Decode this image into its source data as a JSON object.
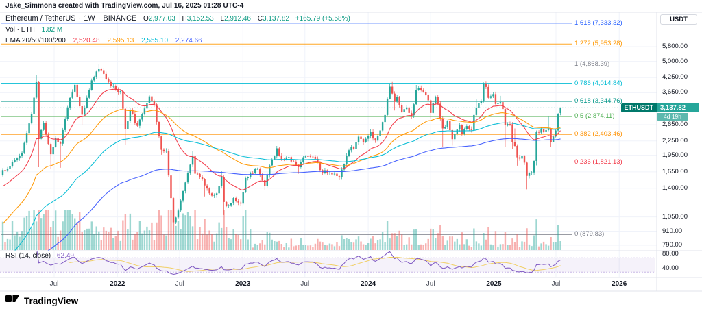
{
  "attribution": "Jake_Simmons created with TradingView.com, Jul 16, 2025 01:28 UTC-4",
  "legend": {
    "symbol": "Ethereum / TetherUS",
    "separator": "·",
    "interval": "1W",
    "exchange": "BINANCE",
    "ohlc": {
      "o_label": "O",
      "o": "2,977.03",
      "h_label": "H",
      "h": "3,152.53",
      "l_label": "L",
      "l": "2,912.46",
      "c_label": "C",
      "c": "3,137.82",
      "change": "+165.79 (+5.58%)"
    },
    "volume": {
      "label": "Vol · ETH",
      "value": "1.82 M"
    },
    "ema": {
      "label": "EMA 20/50/100/200",
      "values": [
        "2,520.48",
        "2,595.13",
        "2,555.10",
        "2,274.66"
      ],
      "colors": [
        "#f23645",
        "#ff9800",
        "#00bcd4",
        "#3d5afe"
      ]
    },
    "rsi": {
      "label": "RSI (14, close)",
      "value": "62.49"
    }
  },
  "price_axis": {
    "currency": "USDT",
    "ticks": [
      "5,800.00",
      "5,000.00",
      "4,250.00",
      "3,650.00",
      "2,650.00",
      "2,250.00",
      "1,950.00",
      "1,650.00",
      "1,400.00",
      "1,050.00",
      "910.00",
      "790.00"
    ],
    "current": {
      "symbol": "ETHUSDT",
      "price": "3,137.82",
      "countdown": "4d 19h"
    }
  },
  "rsi_axis": {
    "ticks": [
      "80.00",
      "40.00"
    ],
    "values": [
      80,
      40
    ]
  },
  "footer": {
    "brand": "TradingView"
  },
  "colors": {
    "up_text": "#089981",
    "down_text": "#f23645",
    "candle_up": "#26a69a",
    "candle_down": "#ef5350",
    "rsi": "#7e57c2",
    "rsi_ma": "#f0c94a",
    "grid": "#f0f3fa",
    "separator": "#e0e3eb",
    "text": "#131722"
  },
  "chart_data": {
    "type": "candlestick",
    "title": "Ethereum / TetherUS 1W (BINANCE) with EMA 20/50/100/200, Volume, RSI(14) and Fibonacci extension levels",
    "symbol": "ETHUSDT",
    "timeframe": "1W",
    "exchange": "BINANCE",
    "price_scale": "log",
    "start_date": "2021-02-01",
    "weeks": 233,
    "y_ticks": [
      5800,
      5000,
      4250,
      3650,
      2650,
      2250,
      1950,
      1650,
      1400,
      1050,
      910,
      790
    ],
    "time_ticks": [
      {
        "label": "Jul",
        "week": 21.4,
        "year": false
      },
      {
        "label": "2022",
        "week": 47.7,
        "year": true
      },
      {
        "label": "Jul",
        "week": 73.6,
        "year": false
      },
      {
        "label": "2023",
        "week": 99.9,
        "year": true
      },
      {
        "label": "Jul",
        "week": 125.7,
        "year": false
      },
      {
        "label": "2024",
        "week": 152.0,
        "year": true
      },
      {
        "label": "Jul",
        "week": 178.0,
        "year": false
      },
      {
        "label": "2025",
        "week": 204.3,
        "year": true
      },
      {
        "label": "Jul",
        "week": 230.1,
        "year": false
      },
      {
        "label": "2026",
        "week": 256.4,
        "year": true
      }
    ],
    "keypoints": [
      [
        0,
        1680,
        null,
        null
      ],
      [
        3,
        1750,
        1400,
        null
      ],
      [
        8,
        2000,
        null,
        null
      ],
      [
        12,
        2950,
        null,
        null
      ],
      [
        14,
        4080,
        null,
        4370
      ],
      [
        15,
        2300,
        1730,
        null
      ],
      [
        17,
        2700,
        null,
        null
      ],
      [
        20,
        1970,
        1700,
        null
      ],
      [
        22,
        2320,
        null,
        null
      ],
      [
        24,
        2190,
        1720,
        null
      ],
      [
        27,
        3150,
        null,
        null
      ],
      [
        30,
        3950,
        null,
        null
      ],
      [
        33,
        2930,
        2650,
        null
      ],
      [
        37,
        4130,
        null,
        null
      ],
      [
        40,
        4640,
        null,
        4868
      ],
      [
        42,
        4410,
        null,
        null
      ],
      [
        44,
        4090,
        null,
        null
      ],
      [
        47,
        3770,
        null,
        null
      ],
      [
        49,
        3710,
        null,
        null
      ],
      [
        51,
        2540,
        2160,
        null
      ],
      [
        53,
        3060,
        null,
        null
      ],
      [
        56,
        2620,
        null,
        null
      ],
      [
        58,
        2950,
        null,
        null
      ],
      [
        61,
        3520,
        null,
        3580
      ],
      [
        63,
        3250,
        null,
        null
      ],
      [
        66,
        2060,
        1960,
        null
      ],
      [
        68,
        2040,
        null,
        null
      ],
      [
        71,
        995,
        880,
        null
      ],
      [
        73,
        1120,
        null,
        null
      ],
      [
        75,
        1360,
        null,
        null
      ],
      [
        77,
        1630,
        null,
        null
      ],
      [
        79,
        1935,
        null,
        2030
      ],
      [
        80,
        1620,
        null,
        null
      ],
      [
        82,
        1560,
        null,
        null
      ],
      [
        84,
        1440,
        1290,
        null
      ],
      [
        86,
        1330,
        null,
        null
      ],
      [
        89,
        1330,
        null,
        null
      ],
      [
        91,
        1570,
        null,
        1660
      ],
      [
        92,
        1220,
        1070,
        null
      ],
      [
        94,
        1180,
        null,
        null
      ],
      [
        96,
        1270,
        null,
        null
      ],
      [
        99,
        1200,
        null,
        null
      ],
      [
        101,
        1550,
        null,
        null
      ],
      [
        103,
        1630,
        null,
        null
      ],
      [
        106,
        1700,
        null,
        null
      ],
      [
        109,
        1430,
        1370,
        null
      ],
      [
        111,
        1760,
        null,
        null
      ],
      [
        114,
        2090,
        null,
        2140
      ],
      [
        116,
        1870,
        null,
        null
      ],
      [
        118,
        1910,
        null,
        null
      ],
      [
        121,
        1830,
        null,
        null
      ],
      [
        123,
        1730,
        1620,
        null
      ],
      [
        125,
        1910,
        null,
        null
      ],
      [
        127,
        1930,
        null,
        null
      ],
      [
        130,
        1880,
        null,
        null
      ],
      [
        132,
        1680,
        null,
        null
      ],
      [
        135,
        1630,
        null,
        null
      ],
      [
        138,
        1620,
        null,
        null
      ],
      [
        140,
        1560,
        1520,
        null
      ],
      [
        142,
        1780,
        null,
        null
      ],
      [
        144,
        2050,
        null,
        null
      ],
      [
        146,
        2080,
        null,
        null
      ],
      [
        148,
        2350,
        null,
        null
      ],
      [
        150,
        2220,
        null,
        null
      ],
      [
        153,
        2470,
        null,
        null
      ],
      [
        155,
        2260,
        null,
        null
      ],
      [
        157,
        2500,
        null,
        null
      ],
      [
        159,
        2920,
        null,
        null
      ],
      [
        161,
        3880,
        null,
        4000
      ],
      [
        162,
        3620,
        null,
        4093
      ],
      [
        163,
        3330,
        3056,
        null
      ],
      [
        164,
        3500,
        null,
        null
      ],
      [
        166,
        3010,
        null,
        null
      ],
      [
        168,
        3150,
        null,
        null
      ],
      [
        170,
        2910,
        2817,
        null
      ],
      [
        172,
        3750,
        null,
        3948
      ],
      [
        173,
        3830,
        null,
        null
      ],
      [
        175,
        3680,
        null,
        null
      ],
      [
        177,
        3380,
        null,
        null
      ],
      [
        178,
        2980,
        2820,
        null
      ],
      [
        180,
        3500,
        null,
        null
      ],
      [
        181,
        3270,
        null,
        null
      ],
      [
        183,
        2550,
        2111,
        null
      ],
      [
        185,
        2750,
        null,
        null
      ],
      [
        187,
        2290,
        2150,
        null
      ],
      [
        190,
        2640,
        null,
        null
      ],
      [
        191,
        2420,
        null,
        null
      ],
      [
        193,
        2610,
        null,
        null
      ],
      [
        195,
        2510,
        null,
        null
      ],
      [
        196,
        2920,
        null,
        null
      ],
      [
        197,
        3130,
        null,
        3440
      ],
      [
        199,
        3370,
        null,
        null
      ],
      [
        200,
        3990,
        null,
        4000
      ],
      [
        201,
        3870,
        null,
        4107
      ],
      [
        202,
        3470,
        null,
        null
      ],
      [
        204,
        3600,
        null,
        null
      ],
      [
        205,
        3260,
        null,
        null
      ],
      [
        207,
        3320,
        null,
        3540
      ],
      [
        208,
        3100,
        null,
        null
      ],
      [
        209,
        2630,
        2125,
        null
      ],
      [
        211,
        2660,
        null,
        null
      ],
      [
        212,
        2230,
        2076,
        null
      ],
      [
        213,
        2140,
        null,
        2550
      ],
      [
        214,
        1910,
        1755,
        null
      ],
      [
        216,
        1940,
        null,
        null
      ],
      [
        217,
        1810,
        null,
        null
      ],
      [
        218,
        1585,
        1385,
        null
      ],
      [
        220,
        1640,
        null,
        null
      ],
      [
        221,
        1840,
        null,
        null
      ],
      [
        222,
        2470,
        1760,
        2490
      ],
      [
        224,
        2530,
        null,
        null
      ],
      [
        226,
        2510,
        null,
        null
      ],
      [
        227,
        2550,
        null,
        2870
      ],
      [
        228,
        2230,
        2111,
        null
      ],
      [
        230,
        2500,
        null,
        null
      ],
      [
        231,
        2940,
        null,
        null
      ],
      [
        232,
        3137.82,
        null,
        null
      ]
    ],
    "current_candle": {
      "open": 2977.03,
      "high": 3152.53,
      "low": 2912.46,
      "close": 3137.82,
      "change": 165.79,
      "change_pct": 5.58
    },
    "indicators": {
      "ema_lengths": [
        20,
        50,
        100,
        200
      ],
      "ema_current": [
        2520.48,
        2595.13,
        2555.1,
        2274.66
      ],
      "rsi_length": 14,
      "rsi_current": 62.49,
      "volume_current_eth": "1.82 M"
    },
    "fib_levels": [
      {
        "level": "1.618",
        "price": 7333.32,
        "label": "1.618 (7,333.32)",
        "color": "#2962ff"
      },
      {
        "level": "1.272",
        "price": 5953.28,
        "label": "1.272 (5,953.28)",
        "color": "#ff9800"
      },
      {
        "level": "1",
        "price": 4868.39,
        "label": "1 (4,868.39)",
        "color": "#787b86"
      },
      {
        "level": "0.786",
        "price": 4014.84,
        "label": "0.786 (4,014.84)",
        "color": "#00bcd4"
      },
      {
        "level": "0.618",
        "price": 3344.76,
        "label": "0.618 (3,344.76)",
        "color": "#009688"
      },
      {
        "level": "0.5",
        "price": 2874.11,
        "label": "0.5 (2,874.11)",
        "color": "#4caf50"
      },
      {
        "level": "0.382",
        "price": 2403.46,
        "label": "0.382 (2,403.46)",
        "color": "#ff9100"
      },
      {
        "level": "0.236",
        "price": 1821.13,
        "label": "0.236 (1,821.13)",
        "color": "#f23645"
      },
      {
        "level": "0",
        "price": 879.83,
        "label": "0 (879.83)",
        "color": "#787b86"
      }
    ]
  }
}
